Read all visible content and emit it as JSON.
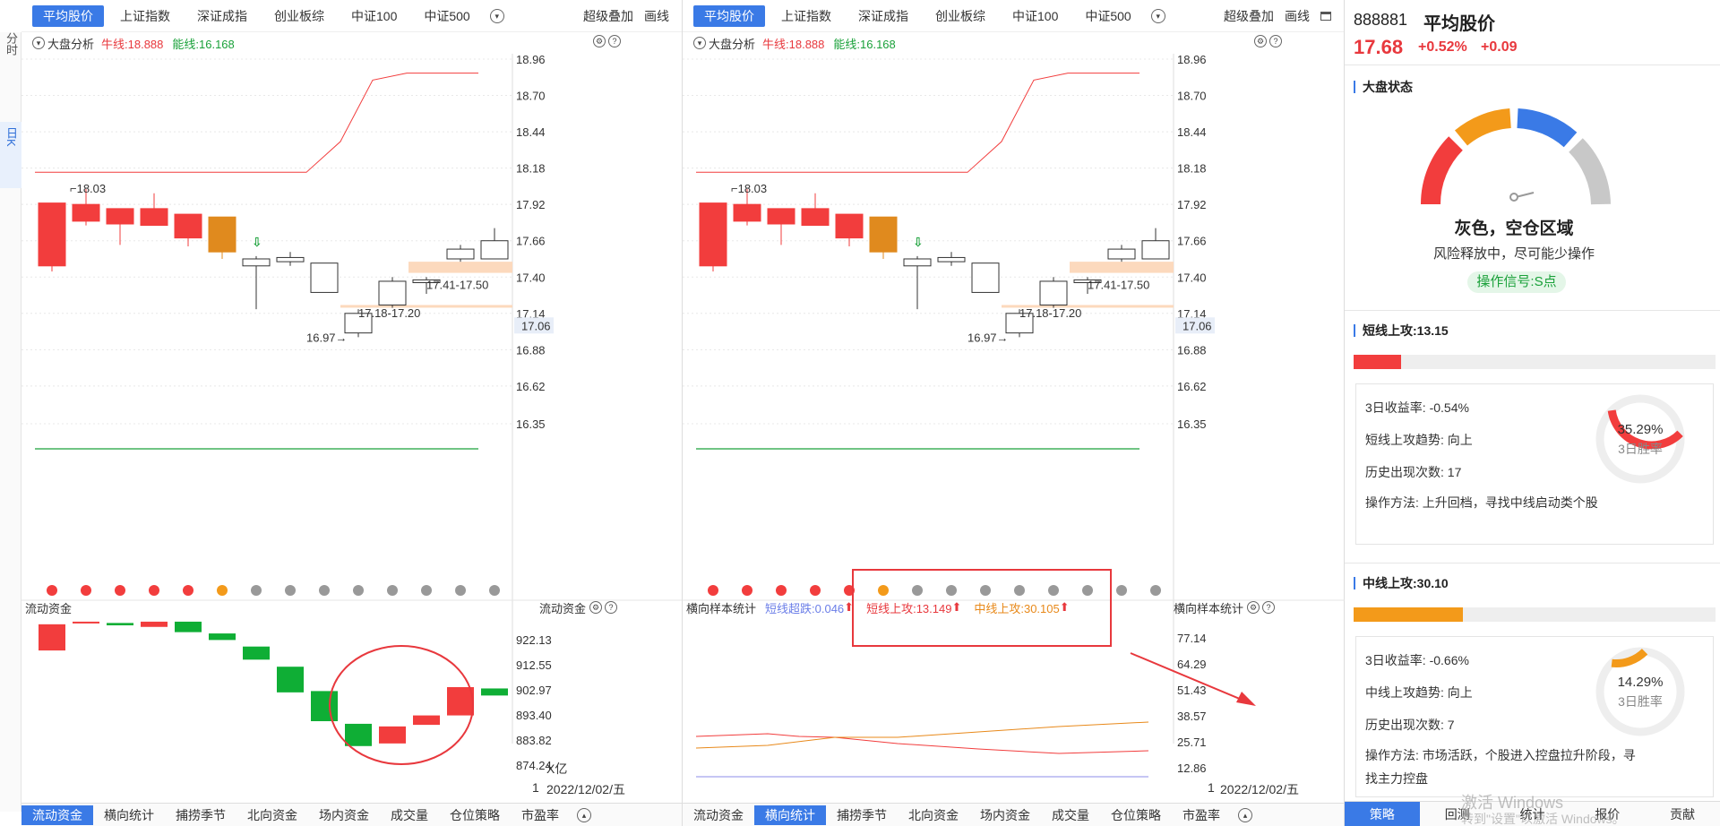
{
  "left_strip": {
    "fen": "分时",
    "ri": "日K"
  },
  "index_tabs": [
    "平均股价",
    "上证指数",
    "深证成指",
    "创业板综",
    "中证100",
    "中证500"
  ],
  "header_right": {
    "overlay": "超级叠加",
    "draw": "画线"
  },
  "subhead": {
    "title": "大盘分析",
    "bull": "牛线:18.888",
    "bear": "能线:16.168"
  },
  "price_axis": [
    "18.96",
    "18.70",
    "18.44",
    "18.18",
    "17.92",
    "17.66",
    "17.40",
    "17.14",
    "16.88",
    "16.62",
    "16.35"
  ],
  "current_price_tag": "17.06",
  "annotations": {
    "high": "18.03",
    "low": "16.97",
    "zone1": "17.18-17.20",
    "zone2": "17.41-17.50"
  },
  "left_bottom": {
    "title": "流动资金",
    "title_right": "流动资金",
    "axis": [
      "922.13",
      "912.55",
      "902.97",
      "893.40",
      "883.82",
      "874.24"
    ],
    "unit": "X亿",
    "date": "2022/12/02/五",
    "date_prefix": "1"
  },
  "right_bottom": {
    "title": "横向样本统计",
    "title_right": "横向样本统计",
    "legend_down": "短线超跌:0.046",
    "legend_short": "短线上攻:13.149",
    "legend_mid": "中线上攻:30.105",
    "axis": [
      "77.14",
      "64.29",
      "51.43",
      "38.57",
      "25.71",
      "12.86"
    ],
    "date": "2022/12/02/五",
    "date_prefix": "1"
  },
  "bottom_tabs": [
    "流动资金",
    "横向统计",
    "捕捞季节",
    "北向资金",
    "场内资金",
    "成交量",
    "仓位策略",
    "市盈率"
  ],
  "sidebar": {
    "code": "888881",
    "name": "平均股价",
    "price": "17.68",
    "pct": "+0.52%",
    "chg": "+0.09",
    "market_state_title": "大盘状态",
    "state_main": "灰色，空仓区域",
    "state_sub": "风险释放中，尽可能少操作",
    "signal": "操作信号:S点",
    "short": {
      "title": "短线上攻:13.15",
      "fill": 0.13149,
      "ret": "3日收益率:  -0.54%",
      "trend": "短线上攻趋势:  向上",
      "count": "历史出现次数:  17",
      "method": "操作方法:   上升回档，寻找中线启动类个股",
      "win_pct": "35.29%",
      "win_label": "3日胜率",
      "win_value": 0.3529
    },
    "mid": {
      "title": "中线上攻:30.10",
      "fill": 0.30105,
      "ret": "3日收益率:  -0.66%",
      "trend": "中线上攻趋势:  向上",
      "count": "历史出现次数:  7",
      "method1": "操作方法:   市场活跃，个股进入控盘拉升阶段，寻",
      "method2": "找主力控盘",
      "win_pct": "14.29%",
      "win_label": "3日胜率",
      "win_value": 0.1429
    },
    "tabs": [
      "策略",
      "回测",
      "统计",
      "报价",
      "贡献"
    ]
  },
  "watermark": {
    "line1": "激活 Windows",
    "line2": "转到\"设置\"以激活 Windows。"
  },
  "colors": {
    "up": "#f23d3d",
    "down": "#0fae35",
    "orange": "#e08a1e",
    "accent": "#3a7ae6"
  }
}
